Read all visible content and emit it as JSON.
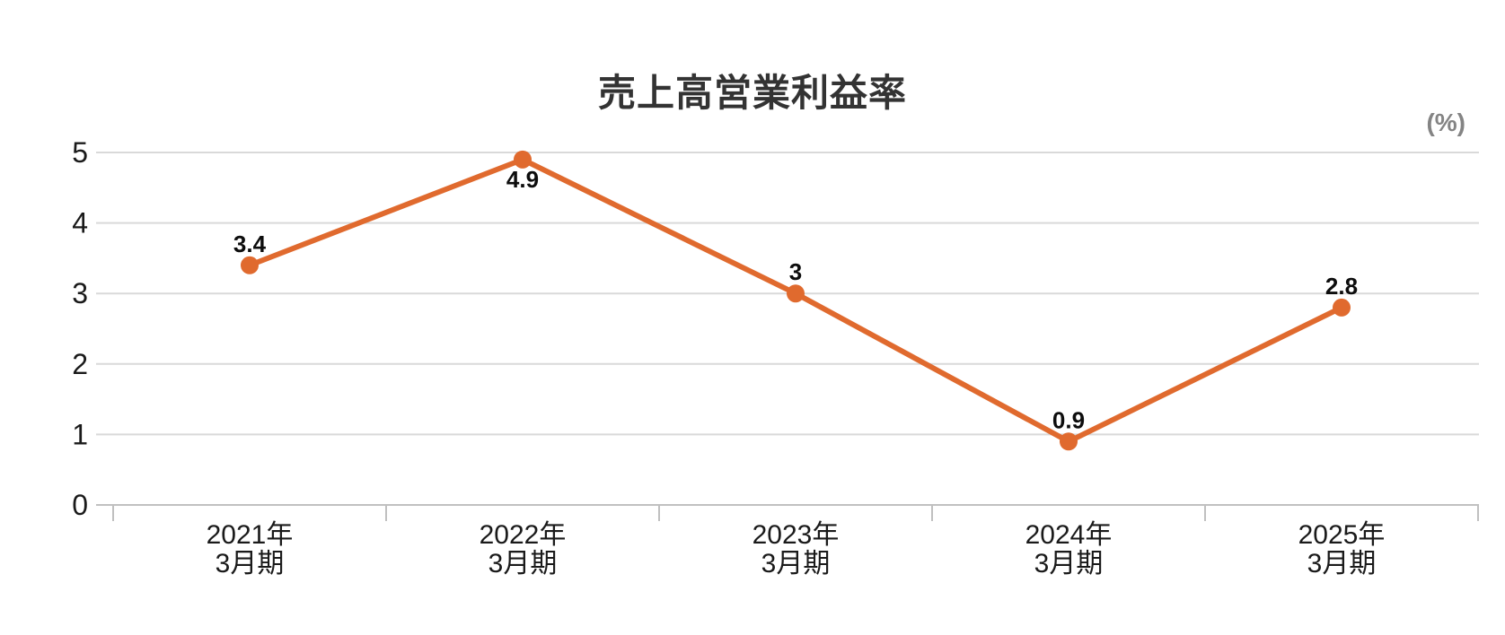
{
  "chart_data": {
    "type": "line",
    "title": "売上高営業利益率",
    "unit_label": "(%)",
    "categories": [
      [
        "2021年",
        "3月期"
      ],
      [
        "2022年",
        "3月期"
      ],
      [
        "2023年",
        "3月期"
      ],
      [
        "2024年",
        "3月期"
      ],
      [
        "2025年",
        "3月期"
      ]
    ],
    "values": [
      3.4,
      4.9,
      3,
      0.9,
      2.8
    ],
    "point_labels": [
      "3.4",
      "4.9",
      "3",
      "0.9",
      "2.8"
    ],
    "point_label_placement": [
      "above",
      "below",
      "above",
      "above",
      "above"
    ],
    "ylim": [
      0,
      5
    ],
    "y_ticks": [
      0,
      1,
      2,
      3,
      4,
      5
    ],
    "grid": true,
    "legend": "none",
    "colors": {
      "line": "#e06a2e",
      "marker": "#e06a2e",
      "gridline": "#d9d9d9",
      "axis_line": "#c0c0c0",
      "axis_text": "#1a1a1a",
      "data_label": "#0d0d0d",
      "title": "#333333",
      "unit_label": "#848484",
      "background": "#ffffff"
    }
  }
}
